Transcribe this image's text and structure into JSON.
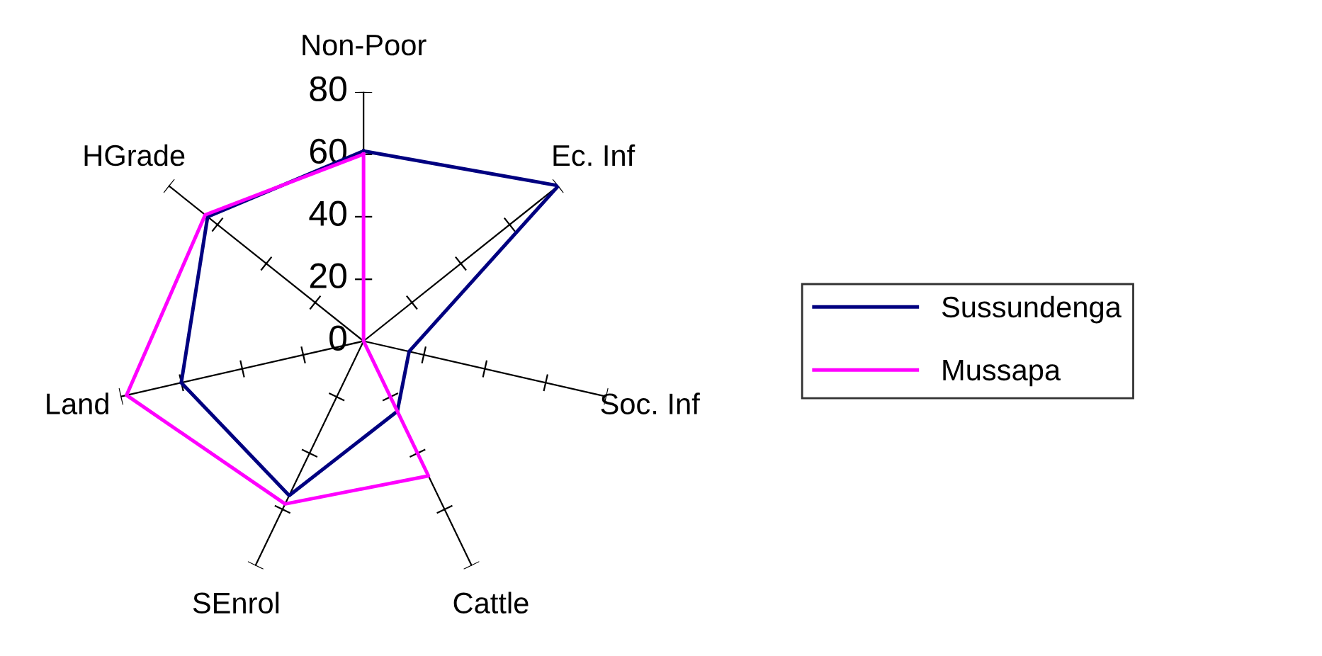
{
  "chart_data": {
    "type": "radar",
    "categories": [
      "Non-Poor",
      "Ec. Inf",
      "Soc. Inf",
      "Cattle",
      "SEnrol",
      "Land",
      "HGrade"
    ],
    "series": [
      {
        "name": "Sussundenga",
        "color": "#000080",
        "values": [
          61,
          80,
          15,
          25,
          55,
          60,
          64
        ]
      },
      {
        "name": "Mussapa",
        "color": "#ff00ff",
        "values": [
          60,
          0,
          0,
          48,
          58,
          78,
          65
        ]
      }
    ],
    "ylim": [
      0,
      80
    ],
    "yticks": [
      0,
      20,
      40,
      60,
      80
    ],
    "legend": "right",
    "marker": "none",
    "line_style": "solid"
  }
}
